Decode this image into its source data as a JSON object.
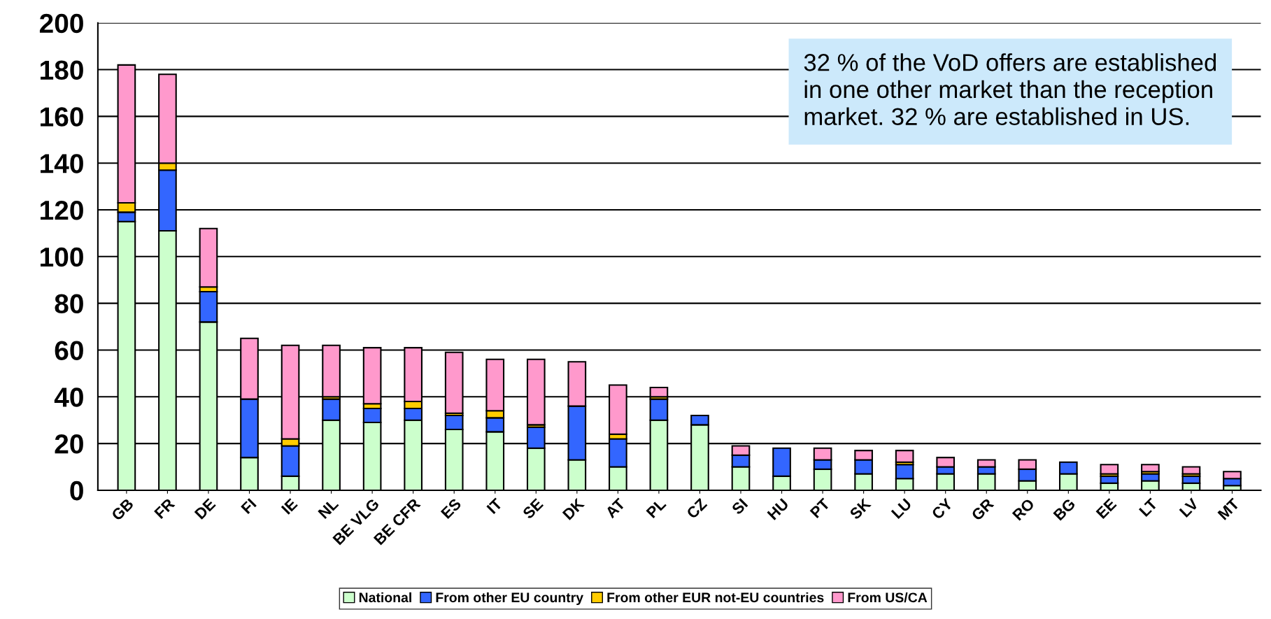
{
  "chart_data": {
    "type": "bar",
    "stacked": true,
    "categories": [
      "GB",
      "FR",
      "DE",
      "FI",
      "IE",
      "NL",
      "BE VLG",
      "BE CFR",
      "ES",
      "IT",
      "SE",
      "DK",
      "AT",
      "PL",
      "CZ",
      "SI",
      "HU",
      "PT",
      "SK",
      "LU",
      "CY",
      "GR",
      "RO",
      "BG",
      "EE",
      "LT",
      "LV",
      "MT"
    ],
    "series": [
      {
        "name": "National",
        "color": "#ccffcc",
        "values": [
          115,
          111,
          72,
          14,
          6,
          30,
          29,
          30,
          26,
          25,
          18,
          13,
          10,
          30,
          28,
          10,
          6,
          9,
          7,
          5,
          7,
          7,
          4,
          7,
          3,
          4,
          3,
          2
        ]
      },
      {
        "name": "From other EU country",
        "color": "#3366ff",
        "values": [
          4,
          26,
          13,
          25,
          13,
          9,
          6,
          5,
          6,
          6,
          9,
          23,
          12,
          9,
          4,
          5,
          12,
          4,
          6,
          6,
          3,
          3,
          5,
          5,
          3,
          3,
          3,
          3
        ]
      },
      {
        "name": "From other EUR not-EU countries",
        "color": "#ffcc00",
        "values": [
          4,
          3,
          2,
          0,
          3,
          1,
          2,
          3,
          1,
          3,
          1,
          0,
          2,
          1,
          0,
          0,
          0,
          0,
          0,
          1,
          0,
          0,
          0,
          0,
          1,
          1,
          1,
          0
        ]
      },
      {
        "name": "From US/CA",
        "color": "#ff99cc",
        "values": [
          59,
          38,
          25,
          26,
          40,
          22,
          24,
          23,
          26,
          22,
          28,
          19,
          21,
          4,
          0,
          4,
          0,
          5,
          4,
          5,
          4,
          3,
          4,
          0,
          4,
          3,
          3,
          3
        ]
      }
    ],
    "ylim": [
      0,
      200
    ],
    "yticks": [
      0,
      20,
      40,
      60,
      80,
      100,
      120,
      140,
      160,
      180,
      200
    ],
    "grid": "y",
    "legend": "bottom",
    "annotations": [
      "32 % of the VoD offers are established in one other market than the reception market. 32 % are established in US."
    ]
  }
}
